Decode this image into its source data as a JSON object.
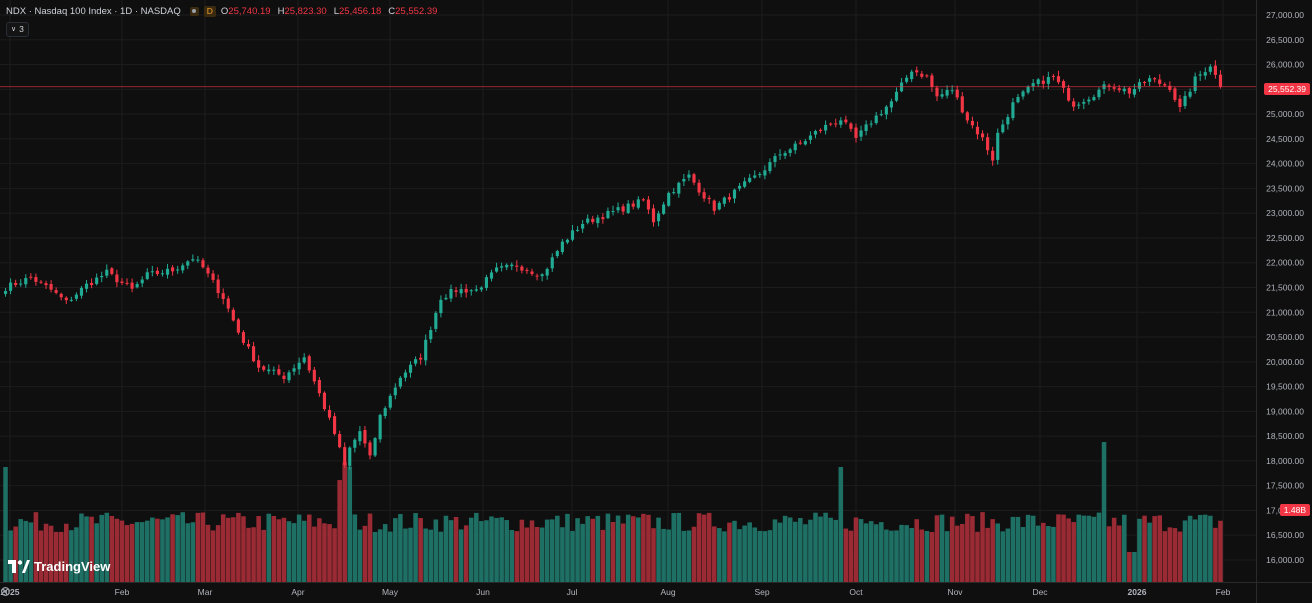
{
  "legend": {
    "symbol_line": "NDX · Nasdaq 100 Index · 1D · NASDAQ",
    "interval_badge": "D",
    "ohlc": [
      {
        "key": "O",
        "value": "25,740.19"
      },
      {
        "key": "H",
        "value": "25,823.30"
      },
      {
        "key": "L",
        "value": "25,456.18"
      },
      {
        "key": "C",
        "value": "25,552.39"
      }
    ],
    "collapse_count": "3",
    "collapse_icon": "chevron-down-icon"
  },
  "last_price_label": "25,552.39",
  "volume_label": "1.48B",
  "watermark": "TradingView",
  "settings_icon": "gear-icon",
  "colors": {
    "background": "#0f0f0f",
    "up": "#22ab94",
    "down": "#f23645",
    "volume_up": "#1e6f64",
    "volume_down": "#9a2a33",
    "grid": "#1c1c1c",
    "text": "#d1d4dc",
    "price_line": "#f23645"
  },
  "chart_data": {
    "type": "candlestick",
    "x_tick_labels": [
      "2025",
      "Feb",
      "Mar",
      "Apr",
      "May",
      "Jun",
      "Jul",
      "Aug",
      "Sep",
      "Oct",
      "Nov",
      "Dec",
      "2026",
      "Feb"
    ],
    "y_tick_labels": [
      "16,000.00",
      "16,500.00",
      "17,000.00",
      "17,500.00",
      "18,000.00",
      "18,500.00",
      "19,000.00",
      "19,500.00",
      "20,000.00",
      "20,500.00",
      "21,000.00",
      "21,500.00",
      "22,000.00",
      "22,500.00",
      "23,000.00",
      "23,500.00",
      "24,000.00",
      "24,500.00",
      "25,000.00",
      "25,500.00",
      "26,000.00",
      "26,500.00",
      "27,000.00"
    ],
    "ylim": [
      15900,
      27100
    ],
    "close_anchors": [
      [
        0,
        21500
      ],
      [
        5,
        21700
      ],
      [
        9,
        21450
      ],
      [
        12,
        21200
      ],
      [
        16,
        21550
      ],
      [
        20,
        21800
      ],
      [
        25,
        21450
      ],
      [
        28,
        21750
      ],
      [
        33,
        21850
      ],
      [
        37,
        22100
      ],
      [
        39,
        21900
      ],
      [
        43,
        21300
      ],
      [
        46,
        20600
      ],
      [
        50,
        19900
      ],
      [
        55,
        19700
      ],
      [
        59,
        20100
      ],
      [
        62,
        19350
      ],
      [
        65,
        18550
      ],
      [
        67,
        17900
      ],
      [
        68,
        18250
      ],
      [
        70,
        18600
      ],
      [
        72,
        18050
      ],
      [
        74,
        18900
      ],
      [
        78,
        19700
      ],
      [
        82,
        20100
      ],
      [
        86,
        21300
      ],
      [
        89,
        21450
      ],
      [
        93,
        21450
      ],
      [
        97,
        21850
      ],
      [
        101,
        21950
      ],
      [
        106,
        21750
      ],
      [
        110,
        22400
      ],
      [
        114,
        22800
      ],
      [
        118,
        22950
      ],
      [
        122,
        23100
      ],
      [
        126,
        23250
      ],
      [
        128,
        22850
      ],
      [
        131,
        23400
      ],
      [
        135,
        23750
      ],
      [
        138,
        23350
      ],
      [
        140,
        23100
      ],
      [
        145,
        23500
      ],
      [
        149,
        23800
      ],
      [
        153,
        24200
      ],
      [
        157,
        24400
      ],
      [
        161,
        24700
      ],
      [
        165,
        24900
      ],
      [
        168,
        24500
      ],
      [
        171,
        24850
      ],
      [
        175,
        25250
      ],
      [
        179,
        25900
      ],
      [
        182,
        25750
      ],
      [
        184,
        25350
      ],
      [
        187,
        25500
      ],
      [
        190,
        24900
      ],
      [
        193,
        24500
      ],
      [
        195,
        24100
      ],
      [
        196,
        24600
      ],
      [
        199,
        25200
      ],
      [
        203,
        25600
      ],
      [
        207,
        25750
      ],
      [
        211,
        25200
      ],
      [
        214,
        25350
      ],
      [
        218,
        25600
      ],
      [
        222,
        25450
      ],
      [
        226,
        25700
      ],
      [
        230,
        25550
      ],
      [
        232,
        25100
      ],
      [
        235,
        25700
      ],
      [
        238,
        26000
      ],
      [
        240,
        25552
      ]
    ],
    "volume_bars": 241,
    "last_close": 25552.39,
    "last_volume": "1.48B"
  }
}
